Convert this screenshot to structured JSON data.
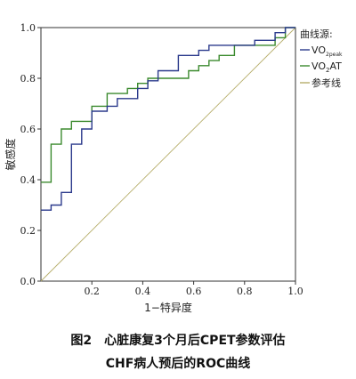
{
  "chart_data": {
    "type": "line",
    "xlabel": "1−特异度",
    "ylabel": "敏感度",
    "xlim": [
      0,
      1
    ],
    "ylim": [
      0,
      1
    ],
    "x_ticks": [
      {
        "value": 0.2,
        "label": "0.2"
      },
      {
        "value": 0.4,
        "label": "0.4"
      },
      {
        "value": 0.6,
        "label": "0.6"
      },
      {
        "value": 0.8,
        "label": "0.8"
      },
      {
        "value": 1.0,
        "label": "1.0"
      }
    ],
    "y_ticks": [
      {
        "value": 0.0,
        "label": "0.0"
      },
      {
        "value": 0.2,
        "label": "0.2"
      },
      {
        "value": 0.4,
        "label": "0.4"
      },
      {
        "value": 0.6,
        "label": "0.6"
      },
      {
        "value": 0.8,
        "label": "0.8"
      },
      {
        "value": 1.0,
        "label": "1.0"
      }
    ],
    "legend": {
      "title": "曲线源:",
      "placement": "top-right outside"
    },
    "series": [
      {
        "name": "VO2peak",
        "label_main": "VO",
        "label_sub": "2peak",
        "label_after": "",
        "color": "#2b3a8c",
        "points": [
          [
            0,
            0.28
          ],
          [
            0.04,
            0.28
          ],
          [
            0.04,
            0.3
          ],
          [
            0.08,
            0.3
          ],
          [
            0.08,
            0.35
          ],
          [
            0.12,
            0.35
          ],
          [
            0.12,
            0.54
          ],
          [
            0.16,
            0.54
          ],
          [
            0.16,
            0.6
          ],
          [
            0.2,
            0.6
          ],
          [
            0.2,
            0.67
          ],
          [
            0.26,
            0.67
          ],
          [
            0.26,
            0.69
          ],
          [
            0.3,
            0.69
          ],
          [
            0.3,
            0.72
          ],
          [
            0.38,
            0.72
          ],
          [
            0.38,
            0.76
          ],
          [
            0.42,
            0.76
          ],
          [
            0.42,
            0.79
          ],
          [
            0.46,
            0.79
          ],
          [
            0.46,
            0.83
          ],
          [
            0.54,
            0.83
          ],
          [
            0.54,
            0.89
          ],
          [
            0.62,
            0.89
          ],
          [
            0.62,
            0.91
          ],
          [
            0.66,
            0.91
          ],
          [
            0.66,
            0.93
          ],
          [
            0.84,
            0.93
          ],
          [
            0.84,
            0.95
          ],
          [
            0.92,
            0.95
          ],
          [
            0.92,
            0.98
          ],
          [
            0.96,
            0.98
          ],
          [
            0.96,
            1.0
          ],
          [
            1.0,
            1.0
          ]
        ]
      },
      {
        "name": "VO2AT",
        "label_main": "VO",
        "label_sub": "2",
        "label_after": "AT",
        "color": "#3b8a2e",
        "points": [
          [
            0,
            0.39
          ],
          [
            0.04,
            0.39
          ],
          [
            0.04,
            0.54
          ],
          [
            0.08,
            0.54
          ],
          [
            0.08,
            0.6
          ],
          [
            0.12,
            0.6
          ],
          [
            0.12,
            0.63
          ],
          [
            0.2,
            0.63
          ],
          [
            0.2,
            0.69
          ],
          [
            0.26,
            0.69
          ],
          [
            0.26,
            0.74
          ],
          [
            0.34,
            0.74
          ],
          [
            0.34,
            0.76
          ],
          [
            0.38,
            0.76
          ],
          [
            0.38,
            0.78
          ],
          [
            0.42,
            0.78
          ],
          [
            0.42,
            0.8
          ],
          [
            0.58,
            0.8
          ],
          [
            0.58,
            0.83
          ],
          [
            0.62,
            0.83
          ],
          [
            0.62,
            0.85
          ],
          [
            0.66,
            0.85
          ],
          [
            0.66,
            0.87
          ],
          [
            0.7,
            0.87
          ],
          [
            0.7,
            0.89
          ],
          [
            0.76,
            0.89
          ],
          [
            0.76,
            0.93
          ],
          [
            0.92,
            0.93
          ],
          [
            0.92,
            0.96
          ],
          [
            0.96,
            0.96
          ],
          [
            0.96,
            1.0
          ],
          [
            1.0,
            1.0
          ]
        ]
      },
      {
        "name": "参考线",
        "label_main": "参考线",
        "label_sub": "",
        "label_after": "",
        "color": "#b6ad6a",
        "points": [
          [
            0,
            0
          ],
          [
            1,
            1
          ]
        ]
      }
    ]
  },
  "caption": {
    "line1": "图2　心脏康复3个月后CPET参数评估",
    "line2": "CHF病人预后的ROC曲线"
  }
}
